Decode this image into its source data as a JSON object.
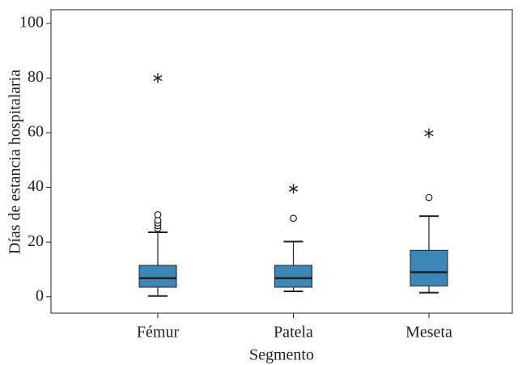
{
  "chart_data": {
    "type": "boxplot",
    "x_label": "Segmento",
    "y_label": "Días de estancia hospitalaria",
    "categories": [
      "Fémur",
      "Patela",
      "Meseta"
    ],
    "color": "#3a87b8",
    "outlier_marker": "circle",
    "extreme_marker": "star",
    "ylim": [
      -6,
      105
    ],
    "yticks": [
      0,
      20,
      40,
      60,
      80,
      100
    ],
    "boxes": [
      {
        "whislo": 0.3,
        "q1": 3.5,
        "med": 6.8,
        "q3": 11.5,
        "whishi": 23.6,
        "outliers": [
          25,
          26,
          27,
          28,
          30
        ],
        "extremes": [
          80
        ]
      },
      {
        "whislo": 2,
        "q1": 3.5,
        "med": 6.8,
        "q3": 11.5,
        "whishi": 20.2,
        "outliers": [
          28.7
        ],
        "extremes": [
          39.5
        ]
      },
      {
        "whislo": 1.5,
        "q1": 4,
        "med": 9,
        "q3": 17,
        "whishi": 29.5,
        "outliers": [
          36.3
        ],
        "extremes": [
          59.8
        ]
      }
    ]
  }
}
